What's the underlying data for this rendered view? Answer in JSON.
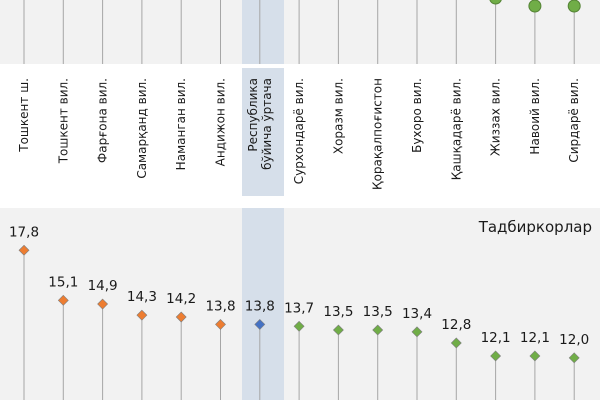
{
  "chart_data": {
    "type": "lollipop",
    "title": "Тадбиркорлар",
    "categories": [
      "Тошкент ш.",
      "Тошкент вил.",
      "Фарғона вил.",
      "Самарқанд вил.",
      "Наманган вил.",
      "Андижон вил.",
      "Республика бўйича ўртача",
      "Сурхондарё вил.",
      "Хоразм вил.",
      "Қорақалпоғистон",
      "Бухоро вил.",
      "Қашқадарё вил.",
      "Жиззах вил.",
      "Навоий вил.",
      "Сирдарё вил."
    ],
    "values": [
      17.8,
      15.1,
      14.9,
      14.3,
      14.2,
      13.8,
      13.8,
      13.7,
      13.5,
      13.5,
      13.4,
      12.8,
      12.1,
      12.1,
      12.0
    ],
    "value_labels": [
      "17,8",
      "15,1",
      "14,9",
      "14,3",
      "14,2",
      "13,8",
      "13,8",
      "13,7",
      "13,5",
      "13,5",
      "13,4",
      "12,8",
      "12,1",
      "12,1",
      "12,0"
    ],
    "groups": [
      "above",
      "above",
      "above",
      "above",
      "above",
      "above",
      "average",
      "below",
      "below",
      "below",
      "below",
      "below",
      "below",
      "below",
      "below"
    ],
    "colors": {
      "above": "#ED7D31",
      "average": "#4472C4",
      "below": "#70AD47"
    },
    "ylim": [
      8,
      19
    ]
  }
}
